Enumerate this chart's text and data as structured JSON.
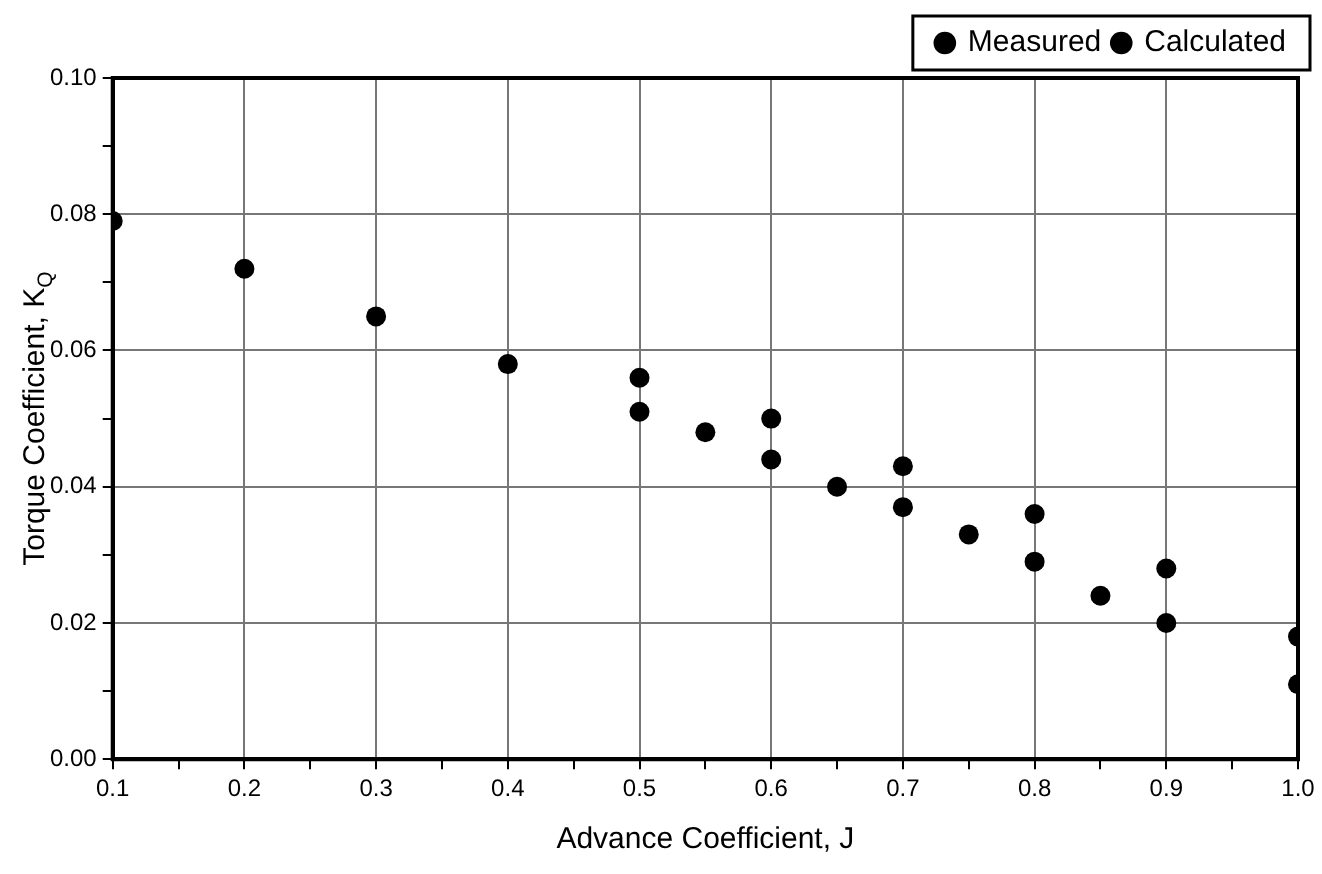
{
  "chart_data": {
    "type": "scatter",
    "xlabel": "Advance Coefficient, J",
    "ylabel": "Torque Coefficient, K$_{Q}$",
    "series": [
      {
        "name": "Measured",
        "color": "#000000",
        "x": [
          0.5,
          0.55,
          0.6,
          0.65,
          0.7,
          0.75,
          0.8,
          0.85,
          0.9,
          1.0
        ],
        "values": [
          0.051,
          0.048,
          0.044,
          0.04,
          0.037,
          0.033,
          0.029,
          0.024,
          0.02,
          0.011
        ]
      },
      {
        "name": "Calculated",
        "color": "#000000",
        "x": [
          0.1,
          0.2,
          0.3,
          0.4,
          0.5,
          0.6,
          0.7,
          0.8,
          0.9,
          1.0
        ],
        "values": [
          0.079,
          0.072,
          0.065,
          0.058,
          0.056,
          0.05,
          0.043,
          0.036,
          0.028,
          0.018
        ]
      }
    ],
    "xlim": [
      0.1,
      1.0
    ],
    "xticks": [
      {
        "value": 0.1,
        "label": "0.1"
      },
      {
        "value": 0.15,
        "label": null
      },
      {
        "value": 0.2,
        "label": "0.2"
      },
      {
        "value": 0.25,
        "label": null
      },
      {
        "value": 0.3,
        "label": "0.3"
      },
      {
        "value": 0.35,
        "label": null
      },
      {
        "value": 0.4,
        "label": "0.4"
      },
      {
        "value": 0.45,
        "label": null
      },
      {
        "value": 0.5,
        "label": "0.5"
      },
      {
        "value": 0.55,
        "label": null
      },
      {
        "value": 0.6,
        "label": "0.6"
      },
      {
        "value": 0.65,
        "label": null
      },
      {
        "value": 0.7,
        "label": "0.7"
      },
      {
        "value": 0.75,
        "label": null
      },
      {
        "value": 0.8,
        "label": "0.8"
      },
      {
        "value": 0.85,
        "label": null
      },
      {
        "value": 0.9,
        "label": "0.9"
      },
      {
        "value": 0.95,
        "label": null
      },
      {
        "value": 1.0,
        "label": "1.0"
      }
    ],
    "ylim": [
      0,
      0.1
    ],
    "yticks": [
      {
        "value": 0,
        "label": "0.00"
      },
      {
        "value": 0.01,
        "label": null
      },
      {
        "value": 0.02,
        "label": "0.02"
      },
      {
        "value": 0.03,
        "label": null
      },
      {
        "value": 0.04,
        "label": "0.04"
      },
      {
        "value": 0.05,
        "label": null
      },
      {
        "value": 0.06,
        "label": "0.06"
      },
      {
        "value": 0.07,
        "label": null
      },
      {
        "value": 0.08,
        "label": "0.08"
      },
      {
        "value": 0.09,
        "label": null
      },
      {
        "value": 0.1,
        "label": "0.10"
      }
    ],
    "grid": true,
    "legend": "top right",
    "marker": "circle"
  }
}
